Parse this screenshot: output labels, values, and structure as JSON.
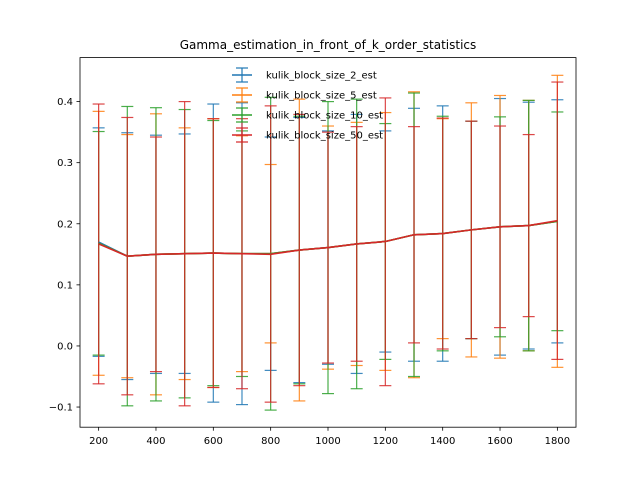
{
  "chart_data": {
    "type": "line",
    "title": "Gamma_estimation_in_front_of_k_order_statistics",
    "xlabel": "",
    "ylabel": "",
    "xlim": [
      135,
      1865
    ],
    "ylim": [
      -0.133,
      0.472
    ],
    "x_ticks": [
      200,
      400,
      600,
      800,
      1000,
      1200,
      1400,
      1600,
      1800
    ],
    "y_ticks": [
      -0.1,
      0.0,
      0.1,
      0.2,
      0.3,
      0.4
    ],
    "y_tick_labels": [
      "−0.1",
      "0.0",
      "0.1",
      "0.2",
      "0.3",
      "0.4"
    ],
    "grid": false,
    "legend_position": "top-center",
    "x": [
      200,
      300,
      400,
      500,
      600,
      700,
      800,
      900,
      1000,
      1100,
      1200,
      1300,
      1400,
      1500,
      1600,
      1700,
      1800
    ],
    "series": [
      {
        "name": "kulik_block_size_2_est",
        "color": "#1f77b4",
        "values": [
          0.17,
          0.147,
          0.15,
          0.151,
          0.152,
          0.151,
          0.151,
          0.157,
          0.161,
          0.167,
          0.171,
          0.182,
          0.184,
          0.19,
          0.195,
          0.197,
          0.204
        ],
        "lower": [
          -0.017,
          -0.055,
          -0.045,
          -0.045,
          -0.092,
          -0.096,
          -0.04,
          -0.06,
          -0.03,
          -0.045,
          -0.01,
          -0.025,
          -0.025,
          0.012,
          -0.015,
          -0.005,
          0.005
        ],
        "upper": [
          0.357,
          0.349,
          0.345,
          0.347,
          0.396,
          0.398,
          0.342,
          0.374,
          0.352,
          0.379,
          0.352,
          0.389,
          0.393,
          0.368,
          0.405,
          0.399,
          0.403
        ]
      },
      {
        "name": "kulik_block_size_5_est",
        "color": "#ff7f0e",
        "values": [
          0.168,
          0.147,
          0.15,
          0.151,
          0.152,
          0.151,
          0.151,
          0.157,
          0.161,
          0.167,
          0.171,
          0.182,
          0.184,
          0.19,
          0.195,
          0.197,
          0.204
        ],
        "lower": [
          -0.048,
          -0.052,
          -0.08,
          -0.055,
          -0.068,
          -0.042,
          0.005,
          -0.09,
          -0.038,
          -0.032,
          -0.04,
          -0.052,
          0.012,
          -0.018,
          -0.02,
          -0.008,
          -0.035
        ],
        "upper": [
          0.384,
          0.346,
          0.38,
          0.357,
          0.372,
          0.344,
          0.297,
          0.404,
          0.36,
          0.366,
          0.382,
          0.416,
          0.372,
          0.398,
          0.41,
          0.402,
          0.443
        ]
      },
      {
        "name": "kulik_block_size_10_est",
        "color": "#2ca02c",
        "values": [
          0.168,
          0.147,
          0.15,
          0.151,
          0.152,
          0.151,
          0.151,
          0.157,
          0.161,
          0.167,
          0.171,
          0.182,
          0.184,
          0.19,
          0.195,
          0.197,
          0.204
        ],
        "lower": [
          -0.015,
          -0.098,
          -0.09,
          -0.085,
          -0.065,
          -0.05,
          -0.105,
          -0.062,
          -0.078,
          -0.07,
          -0.022,
          -0.05,
          -0.008,
          0.012,
          0.015,
          -0.008,
          0.025
        ],
        "upper": [
          0.351,
          0.392,
          0.39,
          0.387,
          0.369,
          0.352,
          0.407,
          0.376,
          0.4,
          0.404,
          0.364,
          0.414,
          0.376,
          0.368,
          0.375,
          0.402,
          0.383
        ]
      },
      {
        "name": "kulik_block_size_50_est",
        "color": "#d62728",
        "values": [
          0.167,
          0.147,
          0.15,
          0.151,
          0.152,
          0.151,
          0.15,
          0.157,
          0.161,
          0.167,
          0.171,
          0.182,
          0.184,
          0.19,
          0.195,
          0.197,
          0.205
        ],
        "lower": [
          -0.062,
          -0.08,
          -0.042,
          -0.098,
          -0.068,
          -0.07,
          -0.092,
          -0.065,
          -0.028,
          -0.025,
          -0.065,
          0.005,
          -0.005,
          0.012,
          0.03,
          0.048,
          -0.022
        ],
        "upper": [
          0.396,
          0.374,
          0.342,
          0.4,
          0.372,
          0.372,
          0.393,
          0.379,
          0.35,
          0.359,
          0.406,
          0.359,
          0.373,
          0.368,
          0.36,
          0.346,
          0.432
        ]
      }
    ]
  }
}
